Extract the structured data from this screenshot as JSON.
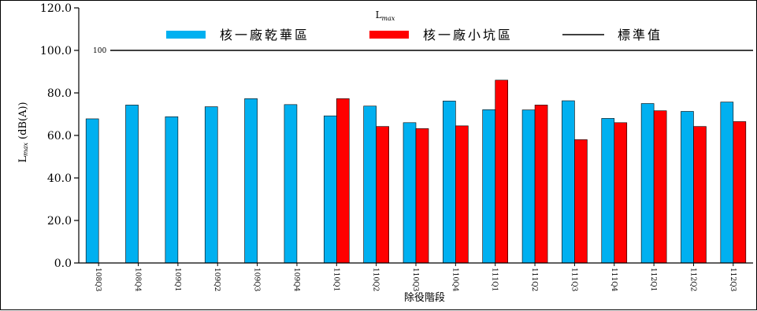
{
  "chart_data": {
    "type": "bar",
    "title": "L",
    "title_sub": "max",
    "ylabel_main": "L",
    "ylabel_sub": "max",
    "ylabel_rest": " (dB(A))",
    "xlabel": "除役階段",
    "ylim": [
      0,
      120
    ],
    "yticks": [
      "0.0",
      "20.0",
      "40.0",
      "60.0",
      "80.0",
      "100.0",
      "120.0"
    ],
    "ytick_values": [
      0,
      20,
      40,
      60,
      80,
      100,
      120
    ],
    "categories": [
      "108Q3",
      "108Q4",
      "109Q1",
      "109Q2",
      "109Q3",
      "109Q4",
      "110Q1",
      "110Q2",
      "110Q3",
      "110Q4",
      "111Q1",
      "111Q2",
      "111Q3",
      "111Q4",
      "112Q1",
      "112Q2",
      "112Q3"
    ],
    "series": [
      {
        "name": "核一廠乾華區",
        "color": "#00b0f0",
        "values": [
          67.8,
          74.3,
          68.8,
          73.5,
          77.3,
          74.5,
          69.2,
          73.8,
          66.0,
          76.2,
          72.1,
          72.0,
          76.3,
          68.0,
          75.0,
          71.3,
          75.7
        ]
      },
      {
        "name": "核一廠小坑區",
        "color": "#ff0000",
        "values": [
          null,
          null,
          null,
          null,
          null,
          null,
          77.3,
          64.2,
          63.2,
          64.5,
          86.0,
          74.3,
          58.0,
          66.0,
          71.6,
          64.2,
          66.5
        ]
      }
    ],
    "reference_line": {
      "name": "標準值",
      "value": 100,
      "label": "100",
      "color": "#000000"
    },
    "legend_position": "top",
    "grid": false
  }
}
